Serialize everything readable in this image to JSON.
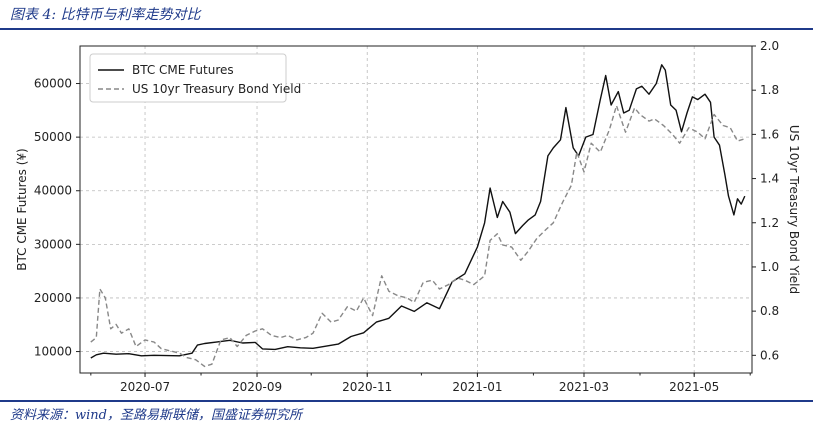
{
  "caption": {
    "title": "图表 4:  比特币与利率走势对比",
    "source": "资料来源：wind，圣路易斯联储，国盛证券研究所"
  },
  "chart_data": {
    "type": "line",
    "x_ticks": [
      "2020-07",
      "2020-09",
      "2020-11",
      "2021-01",
      "2021-03",
      "2021-05"
    ],
    "x_range": [
      "2020-05-26",
      "2021-06-02"
    ],
    "ylabel_left": "BTC CME Futures (¥)",
    "ylabel_right": "US 10yr Treasury Bond Yield",
    "y_left_ticks": [
      10000,
      20000,
      30000,
      40000,
      50000,
      60000
    ],
    "y_right_ticks": [
      0.6,
      0.8,
      1.0,
      1.2,
      1.4,
      1.6,
      1.8,
      2.0
    ],
    "y_left_range": [
      6000,
      67000
    ],
    "y_right_range": [
      0.52,
      2.0
    ],
    "grid": true,
    "legend_position": "top-left",
    "series": [
      {
        "name": "BTC CME Futures",
        "axis": "left",
        "style": "solid",
        "color": "#111111",
        "points": [
          [
            "2020-06-01",
            8800
          ],
          [
            "2020-06-04",
            9400
          ],
          [
            "2020-06-08",
            9700
          ],
          [
            "2020-06-15",
            9500
          ],
          [
            "2020-06-22",
            9600
          ],
          [
            "2020-06-29",
            9200
          ],
          [
            "2020-07-06",
            9300
          ],
          [
            "2020-07-13",
            9250
          ],
          [
            "2020-07-20",
            9200
          ],
          [
            "2020-07-27",
            9700
          ],
          [
            "2020-07-30",
            11200
          ],
          [
            "2020-08-03",
            11500
          ],
          [
            "2020-08-10",
            11800
          ],
          [
            "2020-08-17",
            12100
          ],
          [
            "2020-08-24",
            11600
          ],
          [
            "2020-08-31",
            11700
          ],
          [
            "2020-09-04",
            10500
          ],
          [
            "2020-09-11",
            10400
          ],
          [
            "2020-09-18",
            10900
          ],
          [
            "2020-09-25",
            10700
          ],
          [
            "2020-10-02",
            10600
          ],
          [
            "2020-10-09",
            11000
          ],
          [
            "2020-10-16",
            11400
          ],
          [
            "2020-10-23",
            12800
          ],
          [
            "2020-10-30",
            13500
          ],
          [
            "2020-11-06",
            15500
          ],
          [
            "2020-11-13",
            16200
          ],
          [
            "2020-11-20",
            18500
          ],
          [
            "2020-11-27",
            17500
          ],
          [
            "2020-12-04",
            19100
          ],
          [
            "2020-12-11",
            18000
          ],
          [
            "2020-12-18",
            23000
          ],
          [
            "2020-12-25",
            24500
          ],
          [
            "2021-01-01",
            29500
          ],
          [
            "2021-01-05",
            34000
          ],
          [
            "2021-01-08",
            40500
          ],
          [
            "2021-01-12",
            35000
          ],
          [
            "2021-01-15",
            38000
          ],
          [
            "2021-01-19",
            36000
          ],
          [
            "2021-01-22",
            32000
          ],
          [
            "2021-01-26",
            33500
          ],
          [
            "2021-01-29",
            34500
          ],
          [
            "2021-02-02",
            35500
          ],
          [
            "2021-02-05",
            38000
          ],
          [
            "2021-02-09",
            46500
          ],
          [
            "2021-02-12",
            48000
          ],
          [
            "2021-02-16",
            49500
          ],
          [
            "2021-02-19",
            55500
          ],
          [
            "2021-02-23",
            48000
          ],
          [
            "2021-02-26",
            46500
          ],
          [
            "2021-03-02",
            50000
          ],
          [
            "2021-03-06",
            50500
          ],
          [
            "2021-03-10",
            57000
          ],
          [
            "2021-03-13",
            61500
          ],
          [
            "2021-03-16",
            56000
          ],
          [
            "2021-03-20",
            58500
          ],
          [
            "2021-03-23",
            54500
          ],
          [
            "2021-03-26",
            55000
          ],
          [
            "2021-03-30",
            59000
          ],
          [
            "2021-04-02",
            59500
          ],
          [
            "2021-04-06",
            58000
          ],
          [
            "2021-04-10",
            60000
          ],
          [
            "2021-04-13",
            63500
          ],
          [
            "2021-04-15",
            62500
          ],
          [
            "2021-04-18",
            56000
          ],
          [
            "2021-04-21",
            55000
          ],
          [
            "2021-04-24",
            51000
          ],
          [
            "2021-04-27",
            54500
          ],
          [
            "2021-04-30",
            57500
          ],
          [
            "2021-05-03",
            57000
          ],
          [
            "2021-05-07",
            58000
          ],
          [
            "2021-05-10",
            56500
          ],
          [
            "2021-05-12",
            50000
          ],
          [
            "2021-05-15",
            48500
          ],
          [
            "2021-05-18",
            43000
          ],
          [
            "2021-05-20",
            39000
          ],
          [
            "2021-05-23",
            35500
          ],
          [
            "2021-05-25",
            38500
          ],
          [
            "2021-05-27",
            37500
          ],
          [
            "2021-05-29",
            39000
          ]
        ]
      },
      {
        "name": "US 10yr Treasury Bond Yield",
        "axis": "right",
        "style": "dashed",
        "color": "#888888",
        "points": [
          [
            "2020-06-01",
            0.66
          ],
          [
            "2020-06-04",
            0.68
          ],
          [
            "2020-06-06",
            0.9
          ],
          [
            "2020-06-09",
            0.86
          ],
          [
            "2020-06-12",
            0.72
          ],
          [
            "2020-06-15",
            0.74
          ],
          [
            "2020-06-18",
            0.7
          ],
          [
            "2020-06-22",
            0.72
          ],
          [
            "2020-06-26",
            0.64
          ],
          [
            "2020-07-01",
            0.67
          ],
          [
            "2020-07-06",
            0.66
          ],
          [
            "2020-07-10",
            0.63
          ],
          [
            "2020-07-15",
            0.62
          ],
          [
            "2020-07-20",
            0.61
          ],
          [
            "2020-07-24",
            0.59
          ],
          [
            "2020-07-29",
            0.58
          ],
          [
            "2020-08-03",
            0.55
          ],
          [
            "2020-08-07",
            0.56
          ],
          [
            "2020-08-12",
            0.67
          ],
          [
            "2020-08-17",
            0.68
          ],
          [
            "2020-08-21",
            0.64
          ],
          [
            "2020-08-26",
            0.69
          ],
          [
            "2020-08-31",
            0.71
          ],
          [
            "2020-09-04",
            0.72
          ],
          [
            "2020-09-09",
            0.69
          ],
          [
            "2020-09-14",
            0.68
          ],
          [
            "2020-09-18",
            0.69
          ],
          [
            "2020-09-23",
            0.67
          ],
          [
            "2020-09-28",
            0.68
          ],
          [
            "2020-10-02",
            0.7
          ],
          [
            "2020-10-07",
            0.79
          ],
          [
            "2020-10-12",
            0.75
          ],
          [
            "2020-10-16",
            0.76
          ],
          [
            "2020-10-21",
            0.82
          ],
          [
            "2020-10-26",
            0.8
          ],
          [
            "2020-10-30",
            0.86
          ],
          [
            "2020-11-04",
            0.78
          ],
          [
            "2020-11-09",
            0.96
          ],
          [
            "2020-11-13",
            0.89
          ],
          [
            "2020-11-18",
            0.87
          ],
          [
            "2020-11-23",
            0.86
          ],
          [
            "2020-11-27",
            0.84
          ],
          [
            "2020-12-02",
            0.93
          ],
          [
            "2020-12-07",
            0.94
          ],
          [
            "2020-12-11",
            0.9
          ],
          [
            "2020-12-16",
            0.92
          ],
          [
            "2020-12-21",
            0.95
          ],
          [
            "2020-12-25",
            0.94
          ],
          [
            "2020-12-30",
            0.92
          ],
          [
            "2021-01-05",
            0.96
          ],
          [
            "2021-01-08",
            1.12
          ],
          [
            "2021-01-12",
            1.15
          ],
          [
            "2021-01-15",
            1.1
          ],
          [
            "2021-01-20",
            1.09
          ],
          [
            "2021-01-25",
            1.03
          ],
          [
            "2021-01-29",
            1.07
          ],
          [
            "2021-02-03",
            1.13
          ],
          [
            "2021-02-08",
            1.17
          ],
          [
            "2021-02-12",
            1.2
          ],
          [
            "2021-02-17",
            1.29
          ],
          [
            "2021-02-22",
            1.37
          ],
          [
            "2021-02-25",
            1.52
          ],
          [
            "2021-03-01",
            1.43
          ],
          [
            "2021-03-05",
            1.56
          ],
          [
            "2021-03-10",
            1.52
          ],
          [
            "2021-03-15",
            1.62
          ],
          [
            "2021-03-19",
            1.73
          ],
          [
            "2021-03-24",
            1.61
          ],
          [
            "2021-03-29",
            1.72
          ],
          [
            "2021-04-01",
            1.69
          ],
          [
            "2021-04-06",
            1.66
          ],
          [
            "2021-04-09",
            1.67
          ],
          [
            "2021-04-14",
            1.64
          ],
          [
            "2021-04-19",
            1.6
          ],
          [
            "2021-04-23",
            1.56
          ],
          [
            "2021-04-28",
            1.63
          ],
          [
            "2021-05-03",
            1.61
          ],
          [
            "2021-05-07",
            1.58
          ],
          [
            "2021-05-12",
            1.69
          ],
          [
            "2021-05-17",
            1.64
          ],
          [
            "2021-05-21",
            1.63
          ],
          [
            "2021-05-25",
            1.57
          ],
          [
            "2021-05-29",
            1.58
          ]
        ]
      }
    ]
  }
}
